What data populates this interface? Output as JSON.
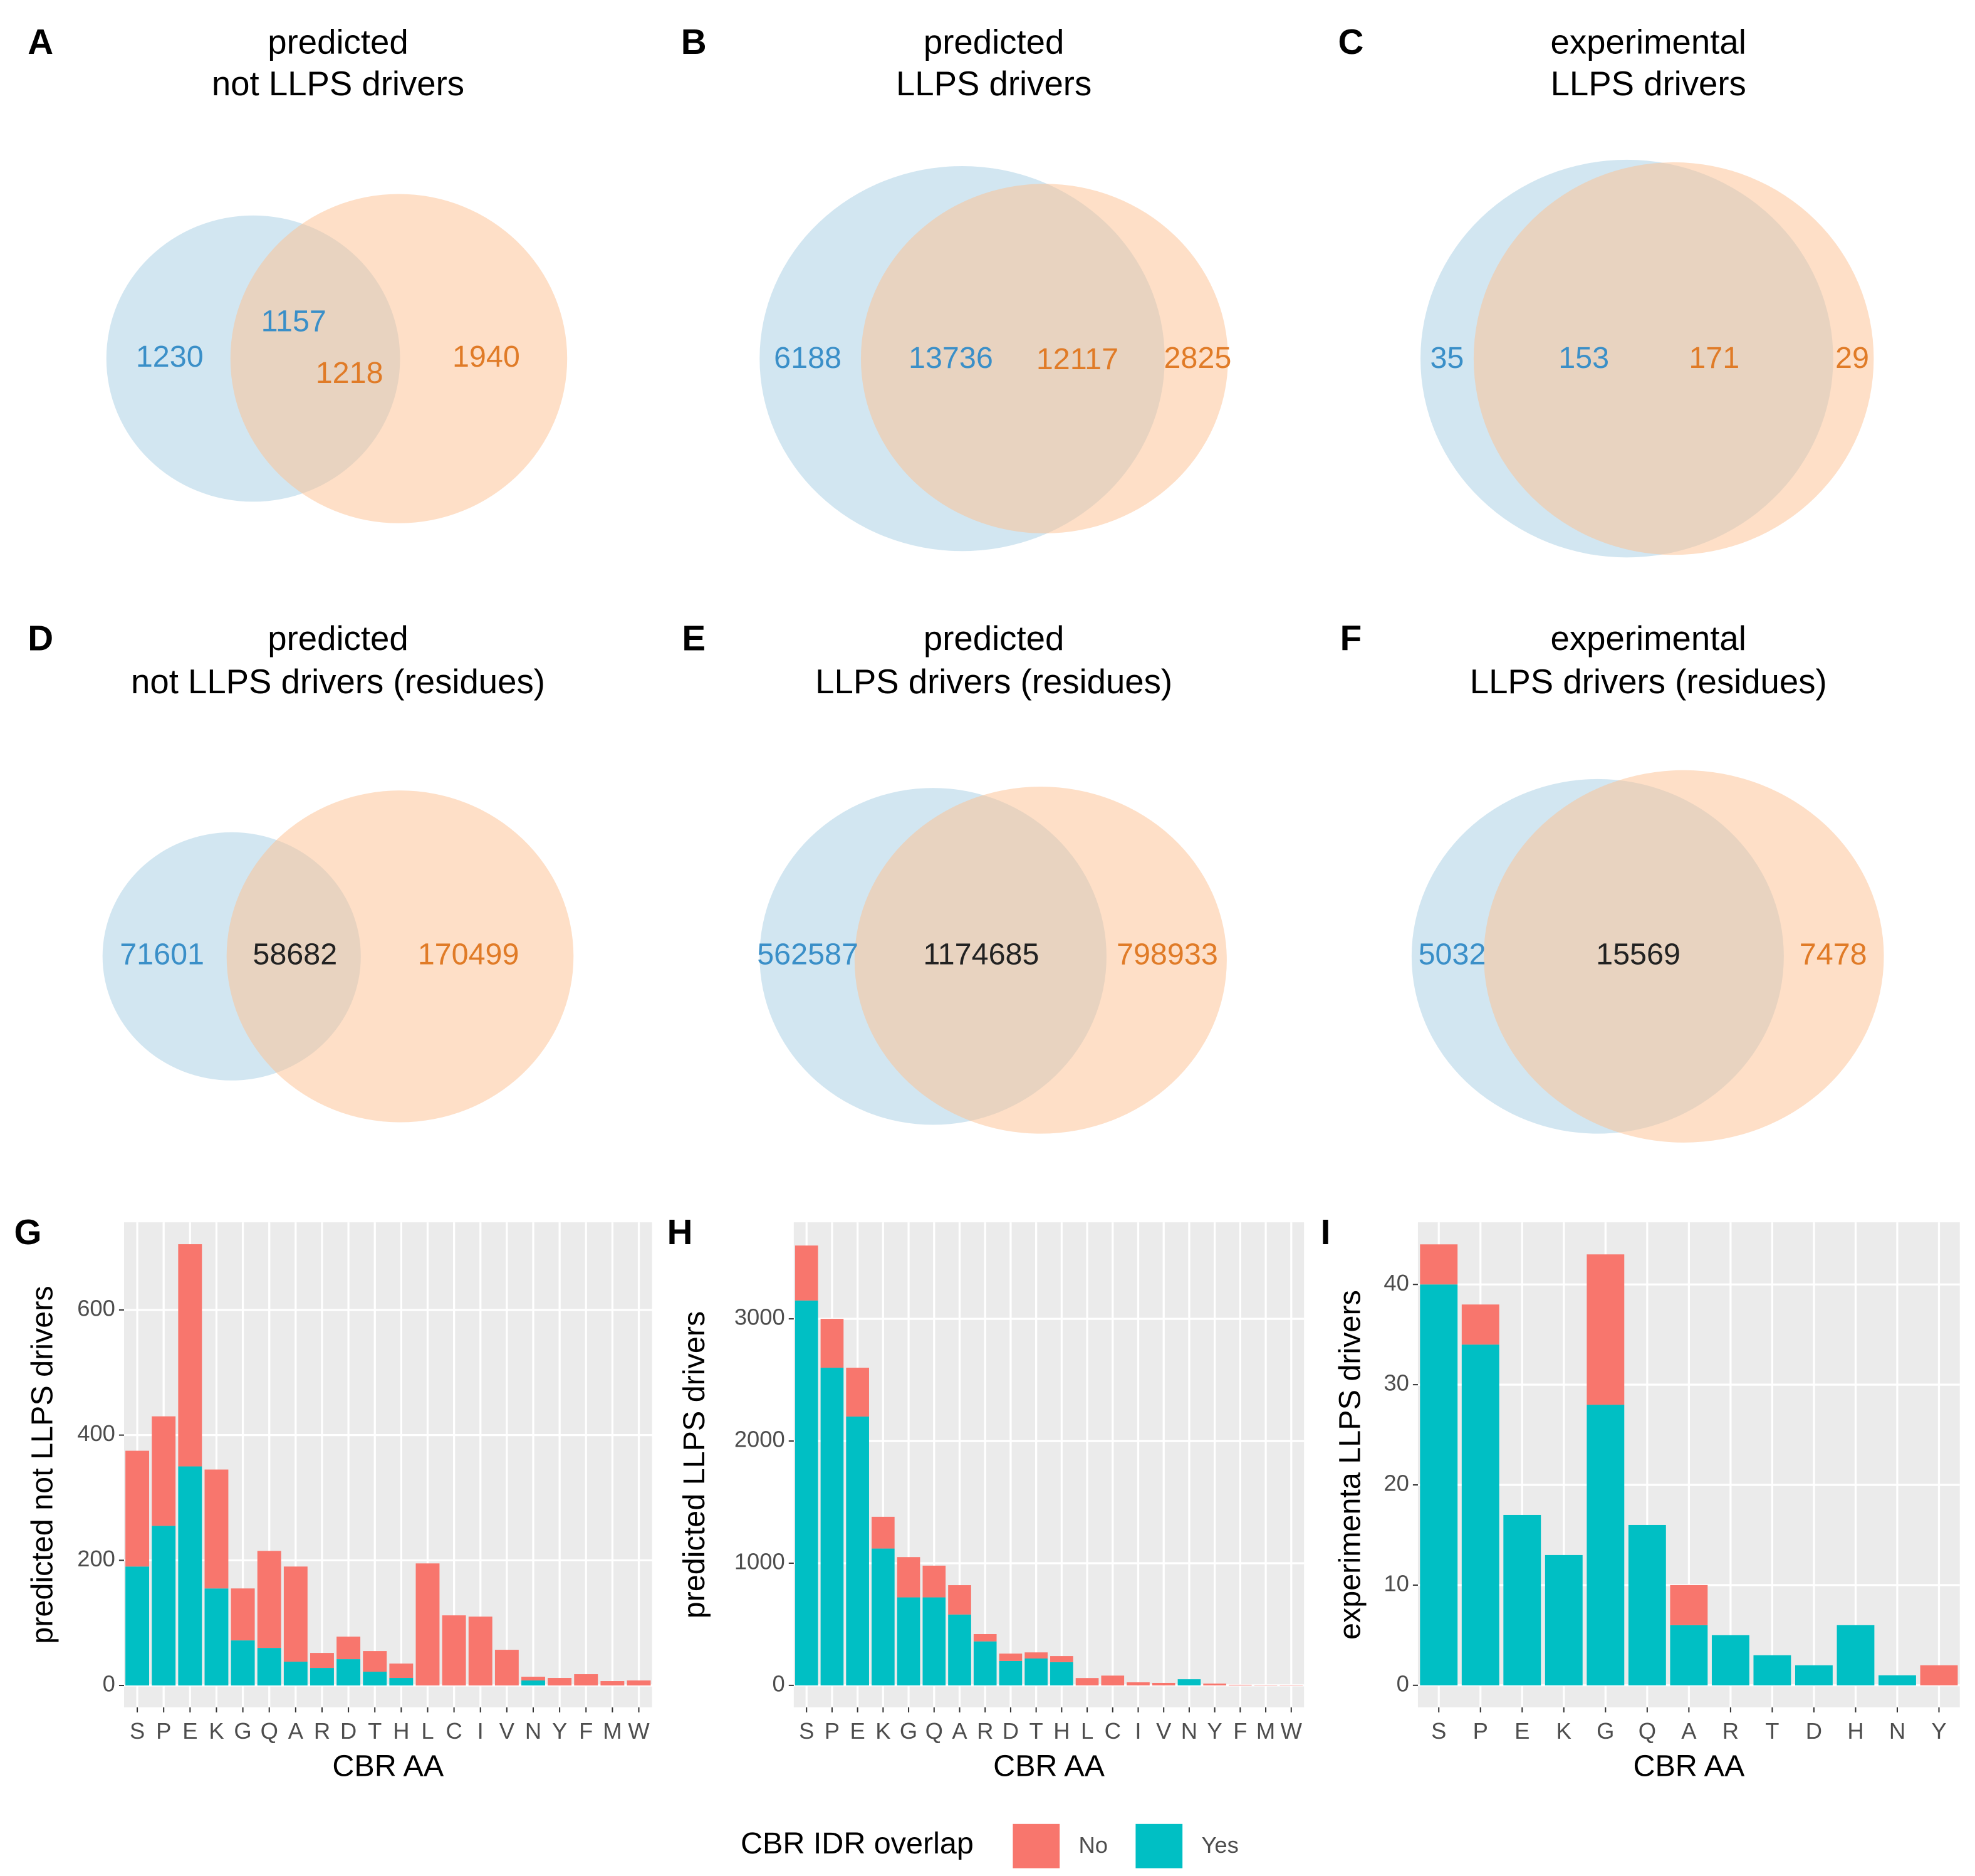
{
  "chart_data": [
    {
      "type": "venn",
      "panel": "A",
      "title": [
        "predicted",
        "not LLPS drivers"
      ],
      "values": [
        1230,
        1157,
        1218,
        1940
      ],
      "label_colors": [
        "#3a8fc8",
        "#3a8fc8",
        "#e07b27",
        "#e07b27"
      ],
      "set_colors": [
        "#a6cee3",
        "#fdbf8f"
      ]
    },
    {
      "type": "venn",
      "panel": "B",
      "title": [
        "predicted",
        "LLPS drivers"
      ],
      "values": [
        6188,
        13736,
        12117,
        2825
      ],
      "label_colors": [
        "#3a8fc8",
        "#3a8fc8",
        "#e07b27",
        "#e07b27"
      ],
      "set_colors": [
        "#a6cee3",
        "#fdbf8f"
      ]
    },
    {
      "type": "venn",
      "panel": "C",
      "title": [
        "experimental",
        "LLPS drivers"
      ],
      "values": [
        35,
        153,
        171,
        29
      ],
      "label_colors": [
        "#3a8fc8",
        "#3a8fc8",
        "#e07b27",
        "#e07b27"
      ],
      "set_colors": [
        "#a6cee3",
        "#fdbf8f"
      ]
    },
    {
      "type": "venn",
      "panel": "D",
      "title": [
        "predicted",
        "not LLPS drivers (residues)"
      ],
      "values": [
        71601,
        58682,
        170499
      ],
      "label_colors": [
        "#3a8fc8",
        "#222222",
        "#e07b27"
      ],
      "set_colors": [
        "#a6cee3",
        "#fdbf8f"
      ]
    },
    {
      "type": "venn",
      "panel": "E",
      "title": [
        "predicted",
        "LLPS drivers (residues)"
      ],
      "values": [
        562587,
        1174685,
        798933
      ],
      "label_colors": [
        "#3a8fc8",
        "#222222",
        "#e07b27"
      ],
      "set_colors": [
        "#a6cee3",
        "#fdbf8f"
      ]
    },
    {
      "type": "venn",
      "panel": "F",
      "title": [
        "experimental",
        "LLPS drivers (residues)"
      ],
      "values": [
        5032,
        15569,
        7478
      ],
      "label_colors": [
        "#3a8fc8",
        "#222222",
        "#e07b27"
      ],
      "set_colors": [
        "#a6cee3",
        "#fdbf8f"
      ]
    },
    {
      "type": "bar",
      "stacked": true,
      "panel": "G",
      "x_label": "CBR AA",
      "y_label": "predicted not LLPS drivers",
      "categories": [
        "S",
        "P",
        "E",
        "K",
        "G",
        "Q",
        "A",
        "R",
        "D",
        "T",
        "H",
        "L",
        "C",
        "I",
        "V",
        "N",
        "Y",
        "F",
        "M",
        "W"
      ],
      "series": [
        {
          "name": "No",
          "color": "#F8766D",
          "values": [
            185,
            175,
            355,
            190,
            83,
            155,
            152,
            24,
            36,
            33,
            23,
            195,
            112,
            110,
            57,
            6,
            12,
            18,
            7,
            8
          ]
        },
        {
          "name": "Yes",
          "color": "#00BFC4",
          "values": [
            190,
            255,
            350,
            155,
            72,
            60,
            38,
            28,
            42,
            22,
            12,
            0,
            0,
            0,
            0,
            8,
            0,
            0,
            0,
            0
          ]
        }
      ],
      "ylim": [
        -35,
        740
      ],
      "yticks": [
        0,
        200,
        400,
        600
      ],
      "grid": true
    },
    {
      "type": "bar",
      "stacked": true,
      "panel": "H",
      "x_label": "CBR AA",
      "y_label": "predicted LLPS drivers",
      "categories": [
        "S",
        "P",
        "E",
        "K",
        "G",
        "Q",
        "A",
        "R",
        "D",
        "T",
        "H",
        "L",
        "C",
        "I",
        "V",
        "N",
        "Y",
        "F",
        "M",
        "W"
      ],
      "series": [
        {
          "name": "No",
          "color": "#F8766D",
          "values": [
            450,
            400,
            400,
            260,
            330,
            260,
            240,
            60,
            60,
            50,
            50,
            60,
            80,
            25,
            20,
            0,
            15,
            5,
            3,
            3
          ]
        },
        {
          "name": "Yes",
          "color": "#00BFC4",
          "values": [
            3150,
            2600,
            2200,
            1120,
            720,
            720,
            580,
            360,
            200,
            220,
            190,
            0,
            0,
            0,
            0,
            50,
            0,
            0,
            0,
            0
          ]
        }
      ],
      "ylim": [
        -180,
        3790
      ],
      "yticks": [
        0,
        1000,
        2000,
        3000
      ],
      "grid": true
    },
    {
      "type": "bar",
      "stacked": true,
      "panel": "I",
      "x_label": "CBR AA",
      "y_label": "experimenta LLPS drivers",
      "categories": [
        "S",
        "P",
        "E",
        "K",
        "G",
        "Q",
        "A",
        "R",
        "T",
        "D",
        "H",
        "N",
        "Y"
      ],
      "series": [
        {
          "name": "No",
          "color": "#F8766D",
          "values": [
            4,
            4,
            0,
            0,
            15,
            0,
            4,
            0,
            0,
            0,
            0,
            0,
            2
          ]
        },
        {
          "name": "Yes",
          "color": "#00BFC4",
          "values": [
            40,
            34,
            17,
            13,
            28,
            16,
            6,
            5,
            3,
            2,
            6,
            1,
            0
          ]
        }
      ],
      "ylim": [
        -2.2,
        46.2
      ],
      "yticks": [
        0,
        10,
        20,
        30,
        40
      ],
      "grid": true
    }
  ],
  "legend": {
    "title": "CBR IDR overlap"
  }
}
